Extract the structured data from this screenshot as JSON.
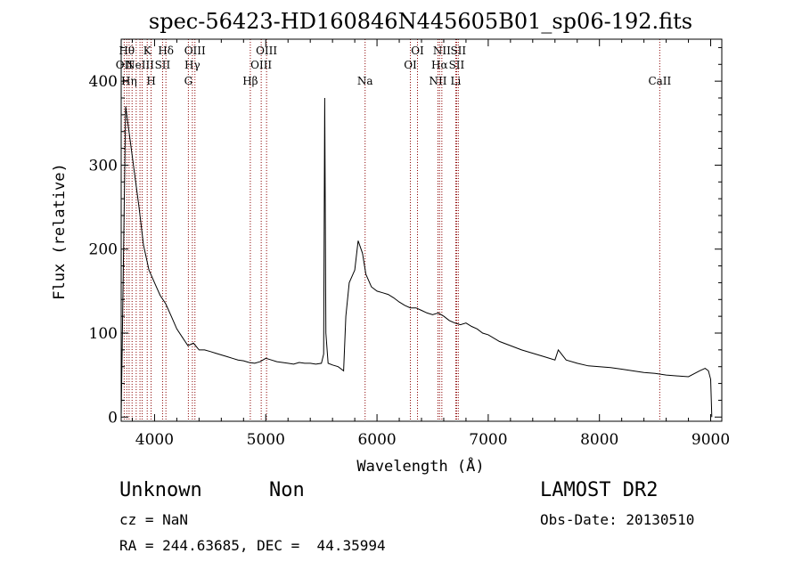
{
  "chart_data": {
    "type": "line",
    "title": "spec-56423-HD160846N445605B01_sp06-192.fits",
    "xlabel": "Wavelength (Å)",
    "ylabel": "Flux (relative)",
    "xlim": [
      3700,
      9100
    ],
    "ylim": [
      -5,
      450
    ],
    "x_ticks": [
      4000,
      5000,
      6000,
      7000,
      8000,
      9000
    ],
    "y_ticks": [
      0,
      100,
      200,
      300,
      400
    ],
    "grid": false,
    "series": [
      {
        "color": "#000000",
        "x": [
          3700,
          3740,
          3780,
          3820,
          3860,
          3900,
          3950,
          4000,
          4050,
          4100,
          4150,
          4200,
          4250,
          4300,
          4350,
          4400,
          4450,
          4500,
          4550,
          4600,
          4650,
          4700,
          4750,
          4800,
          4850,
          4900,
          4950,
          5000,
          5050,
          5100,
          5150,
          5200,
          5250,
          5300,
          5350,
          5400,
          5450,
          5500,
          5520,
          5530,
          5540,
          5560,
          5600,
          5650,
          5700,
          5720,
          5750,
          5800,
          5830,
          5870,
          5900,
          5950,
          6000,
          6050,
          6100,
          6150,
          6200,
          6250,
          6300,
          6350,
          6400,
          6450,
          6500,
          6550,
          6600,
          6650,
          6700,
          6750,
          6800,
          6850,
          6900,
          6950,
          7000,
          7100,
          7200,
          7300,
          7400,
          7500,
          7600,
          7630,
          7700,
          7800,
          7900,
          8000,
          8100,
          8200,
          8300,
          8400,
          8500,
          8600,
          8700,
          8800,
          8900,
          8950,
          8980,
          9000,
          9010
        ],
        "y": [
          0,
          370,
          330,
          290,
          250,
          205,
          175,
          160,
          145,
          135,
          120,
          105,
          95,
          85,
          88,
          80,
          80,
          78,
          76,
          74,
          72,
          70,
          68,
          67,
          65,
          64,
          66,
          70,
          68,
          66,
          65,
          64,
          63,
          65,
          64,
          64,
          63,
          64,
          75,
          380,
          100,
          64,
          62,
          60,
          55,
          120,
          160,
          175,
          210,
          195,
          170,
          155,
          150,
          148,
          146,
          142,
          137,
          133,
          130,
          130,
          127,
          124,
          122,
          124,
          120,
          115,
          112,
          110,
          112,
          108,
          105,
          100,
          98,
          90,
          85,
          80,
          76,
          72,
          68,
          80,
          68,
          64,
          61,
          60,
          59,
          57,
          55,
          53,
          52,
          50,
          49,
          48,
          55,
          58,
          55,
          45,
          0
        ]
      }
    ],
    "lines": [
      {
        "wl": 3727,
        "label": "OII",
        "row": 2
      },
      {
        "wl": 3750,
        "label": "Hθ",
        "row": 1
      },
      {
        "wl": 3771,
        "label": "Hη",
        "row": 3
      },
      {
        "wl": 3798,
        "label": "",
        "row": 0
      },
      {
        "wl": 3835,
        "label": "",
        "row": 0
      },
      {
        "wl": 3869,
        "label": "NeIII",
        "row": 2
      },
      {
        "wl": 3889,
        "label": "",
        "row": 0
      },
      {
        "wl": 3934,
        "label": "K",
        "row": 1
      },
      {
        "wl": 3969,
        "label": "H",
        "row": 3
      },
      {
        "wl": 4072,
        "label": "SII",
        "row": 2
      },
      {
        "wl": 4102,
        "label": "Hδ",
        "row": 1
      },
      {
        "wl": 4304,
        "label": "G",
        "row": 3
      },
      {
        "wl": 4340,
        "label": "Hγ",
        "row": 2
      },
      {
        "wl": 4363,
        "label": "OIII",
        "row": 1
      },
      {
        "wl": 4861,
        "label": "Hβ",
        "row": 3
      },
      {
        "wl": 4959,
        "label": "OIII",
        "row": 2
      },
      {
        "wl": 5007,
        "label": "OIII",
        "row": 1
      },
      {
        "wl": 5893,
        "label": "Na",
        "row": 3
      },
      {
        "wl": 6300,
        "label": "OI",
        "row": 2
      },
      {
        "wl": 6364,
        "label": "OI",
        "row": 1
      },
      {
        "wl": 6548,
        "label": "NII",
        "row": 3
      },
      {
        "wl": 6563,
        "label": "Hα",
        "row": 2
      },
      {
        "wl": 6583,
        "label": "NII",
        "row": 1
      },
      {
        "wl": 6708,
        "label": "Li",
        "row": 3
      },
      {
        "wl": 6716,
        "label": "SII",
        "row": 2
      },
      {
        "wl": 6731,
        "label": "SII",
        "row": 1
      },
      {
        "wl": 8542,
        "label": "CaII",
        "row": 3
      }
    ]
  },
  "info": {
    "object_class": "Unknown",
    "subclass": "Non",
    "redshift": "cz = NaN",
    "coords": "RA = 244.63685, DEC =  44.35994",
    "survey": "LAMOST DR2",
    "obs_date": "Obs-Date: 20130510"
  },
  "colors": {
    "line_marker": "#8b0000",
    "spectrum": "#000000"
  }
}
